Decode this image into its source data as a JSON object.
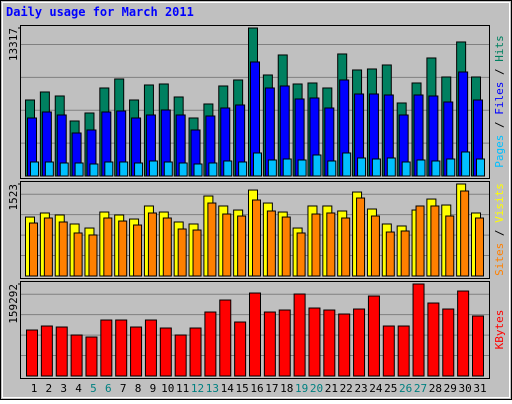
{
  "chart_data": [
    {
      "type": "bar",
      "title": "Daily usage for March 2011",
      "legend_separator": " / ",
      "ylim": [
        0,
        13317
      ],
      "yticks": [
        13317
      ],
      "series": [
        {
          "name": "Hits",
          "color": "#008060",
          "values": [
            6840,
            7560,
            7200,
            4950,
            5670,
            7920,
            8730,
            6840,
            8190,
            8280,
            7110,
            5220,
            6480,
            8100,
            8640,
            13317,
            9090,
            10890,
            8280,
            8370,
            7920,
            10980,
            9540,
            9630,
            9990,
            6570,
            8370,
            10620,
            8910,
            12060,
            8910
          ]
        },
        {
          "name": "Files",
          "color": "#0000ff",
          "values": [
            5220,
            5760,
            5490,
            3870,
            4140,
            5760,
            5850,
            5220,
            5490,
            5940,
            5490,
            4140,
            5400,
            6120,
            6390,
            10260,
            7920,
            8100,
            6930,
            7020,
            6120,
            8640,
            7380,
            7380,
            7290,
            5490,
            7290,
            7200,
            6660,
            9360,
            6840
          ]
        },
        {
          "name": "Pages",
          "color": "#00c0ff",
          "values": [
            1260,
            1260,
            1170,
            1170,
            1080,
            1260,
            1260,
            1170,
            1350,
            1260,
            1170,
            1080,
            1170,
            1350,
            1260,
            2070,
            1440,
            1530,
            1440,
            1890,
            1350,
            2070,
            1620,
            1530,
            1620,
            1260,
            1440,
            1350,
            1530,
            2160,
            1530
          ]
        }
      ]
    },
    {
      "type": "bar",
      "ylim": [
        0,
        1523
      ],
      "yticks": [
        1523
      ],
      "series": [
        {
          "name": "Visits",
          "color": "#ffff00",
          "values": [
            976,
            1043,
            1010,
            861,
            794,
            1059,
            1010,
            943,
            1159,
            1059,
            894,
            861,
            1324,
            1159,
            1092,
            1423,
            1208,
            1059,
            794,
            1159,
            1159,
            1076,
            1390,
            1109,
            861,
            828,
            1092,
            1274,
            1175,
            1523,
            1043
          ]
        },
        {
          "name": "Sites",
          "color": "#ff8000",
          "values": [
            877,
            960,
            894,
            712,
            679,
            960,
            910,
            844,
            1043,
            960,
            778,
            761,
            1208,
            1026,
            993,
            1258,
            1076,
            976,
            712,
            1026,
            1043,
            960,
            1291,
            993,
            728,
            745,
            1159,
            1159,
            993,
            1407,
            960
          ]
        }
      ]
    },
    {
      "type": "bar",
      "ylim": [
        0,
        159292
      ],
      "yticks": [
        159292
      ],
      "series": [
        {
          "name": "KBytes",
          "color": "#ff0000",
          "values": [
            79626,
            86550,
            84819,
            70971,
            67509,
            96936,
            96936,
            84819,
            96936,
            83088,
            70971,
            83088,
            110784,
            131556,
            93474,
            143673,
            110784,
            114246,
            141942,
            117708,
            114246,
            107322,
            115977,
            138480,
            86550,
            86550,
            159292,
            126363,
            115977,
            147135,
            103860
          ]
        }
      ],
      "categories": [
        "1",
        "2",
        "3",
        "4",
        "5",
        "6",
        "7",
        "8",
        "9",
        "10",
        "11",
        "12",
        "13",
        "14",
        "15",
        "16",
        "17",
        "18",
        "19",
        "20",
        "21",
        "22",
        "23",
        "24",
        "25",
        "26",
        "27",
        "28",
        "29",
        "30",
        "31"
      ],
      "category_colors": [
        "#000000",
        "#000000",
        "#000000",
        "#000000",
        "#008080",
        "#008080",
        "#000000",
        "#000000",
        "#000000",
        "#000000",
        "#000000",
        "#008080",
        "#008080",
        "#000000",
        "#000000",
        "#000000",
        "#000000",
        "#000000",
        "#008080",
        "#008080",
        "#000000",
        "#000000",
        "#000000",
        "#000000",
        "#000000",
        "#008080",
        "#008080",
        "#000000",
        "#000000",
        "#000000",
        "#000000"
      ]
    }
  ]
}
